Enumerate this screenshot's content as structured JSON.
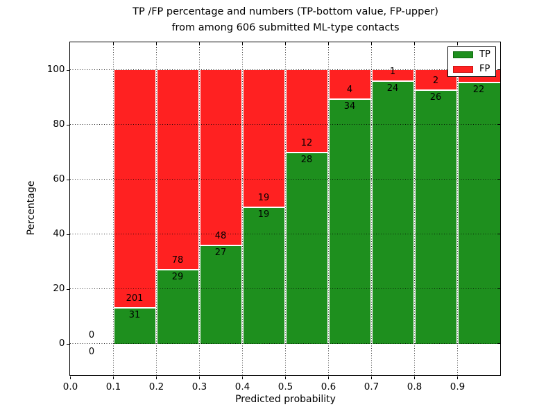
{
  "chart_data": {
    "type": "bar",
    "stacked": true,
    "title_line1": "TP /FP percentage and numbers (TP-bottom value, FP-upper)",
    "title_line2": "from among 606 submitted ML-type contacts",
    "xlabel": "Predicted probability",
    "ylabel": "Percentage",
    "total_contacts": 606,
    "xlim": [
      0.0,
      1.0
    ],
    "ylim": [
      -11.5,
      110
    ],
    "grid": true,
    "bin_width": 0.1,
    "categories": [
      "0.0-0.1",
      "0.1-0.2",
      "0.2-0.3",
      "0.3-0.4",
      "0.4-0.5",
      "0.5-0.6",
      "0.6-0.7",
      "0.7-0.8",
      "0.8-0.9",
      "0.9-1.0"
    ],
    "x_ticks": [
      {
        "value": 0.0,
        "label": "0.0"
      },
      {
        "value": 0.1,
        "label": "0.1"
      },
      {
        "value": 0.2,
        "label": "0.2"
      },
      {
        "value": 0.3,
        "label": "0.3"
      },
      {
        "value": 0.4,
        "label": "0.4"
      },
      {
        "value": 0.5,
        "label": "0.5"
      },
      {
        "value": 0.6,
        "label": "0.6"
      },
      {
        "value": 0.7,
        "label": "0.7"
      },
      {
        "value": 0.8,
        "label": "0.8"
      },
      {
        "value": 0.9,
        "label": "0.9"
      }
    ],
    "y_ticks": [
      {
        "value": 0,
        "label": "0"
      },
      {
        "value": 20,
        "label": "20"
      },
      {
        "value": 40,
        "label": "40"
      },
      {
        "value": 60,
        "label": "60"
      },
      {
        "value": 80,
        "label": "80"
      },
      {
        "value": 100,
        "label": "100"
      }
    ],
    "series": [
      {
        "name": "TP",
        "color": "#1e8f1e",
        "position": "bottom",
        "counts": [
          0,
          31,
          29,
          27,
          19,
          28,
          34,
          24,
          26,
          22
        ]
      },
      {
        "name": "FP",
        "color": "#ff2121",
        "position": "top",
        "counts": [
          0,
          201,
          78,
          48,
          19,
          12,
          4,
          1,
          2,
          1
        ]
      }
    ],
    "bars_are_percent_stacked_to": 100,
    "legend": {
      "position": "upper right",
      "entries": [
        {
          "label": "TP",
          "color": "#1e8f1e",
          "border": "#0e6a0e"
        },
        {
          "label": "FP",
          "color": "#ff2121",
          "border": "#c91313"
        }
      ]
    }
  },
  "colors": {
    "tp_green": "#1e8f1e",
    "fp_red": "#ff2121",
    "axis": "#000000",
    "background": "#ffffff",
    "bar_edge_white": "#ffffff"
  }
}
